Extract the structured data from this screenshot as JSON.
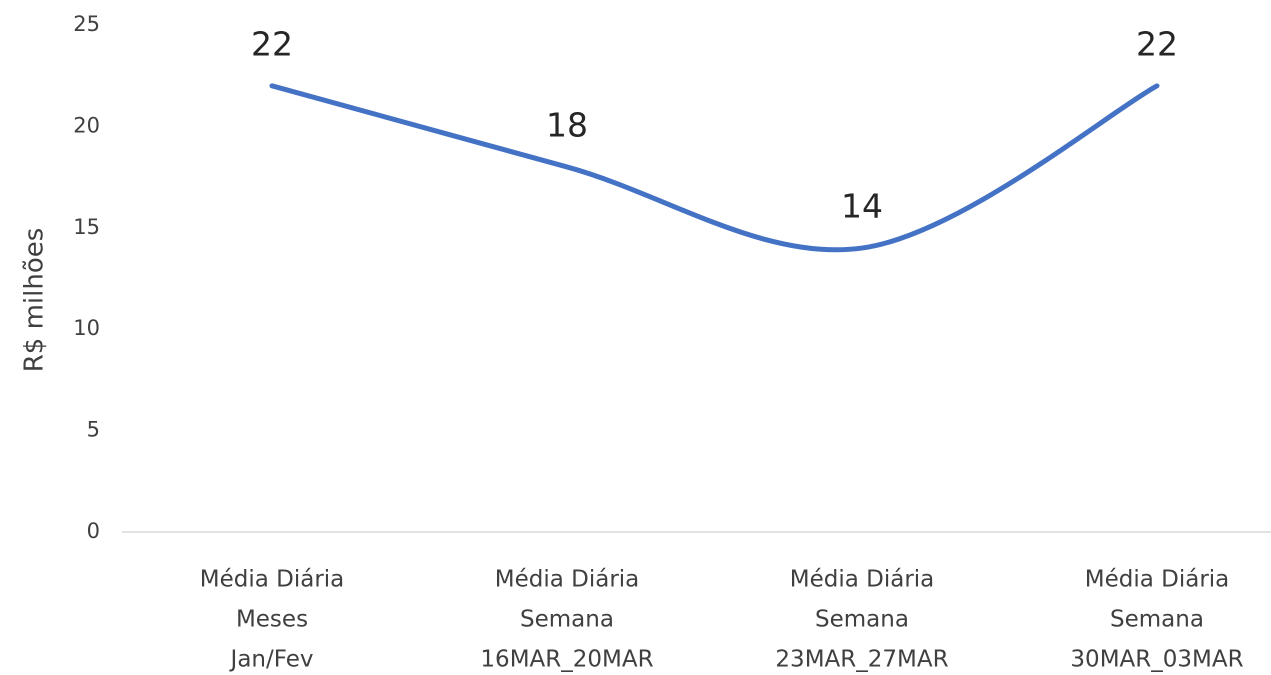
{
  "chart_data": {
    "type": "line",
    "y_label": "R$ milhões",
    "categories": [
      [
        "Média Diária",
        "Meses",
        "Jan/Fev"
      ],
      [
        "Média Diária",
        "Semana",
        "16MAR_20MAR"
      ],
      [
        "Média Diária",
        "Semana",
        "23MAR_27MAR"
      ],
      [
        "Média Diária",
        "Semana",
        "30MAR_03MAR"
      ]
    ],
    "values": [
      22,
      18,
      14,
      22
    ],
    "color": "#4472c4",
    "smooth": true,
    "ylim": [
      0,
      25
    ],
    "yticks": [
      0,
      5,
      10,
      15,
      20,
      25
    ],
    "grid": false
  }
}
